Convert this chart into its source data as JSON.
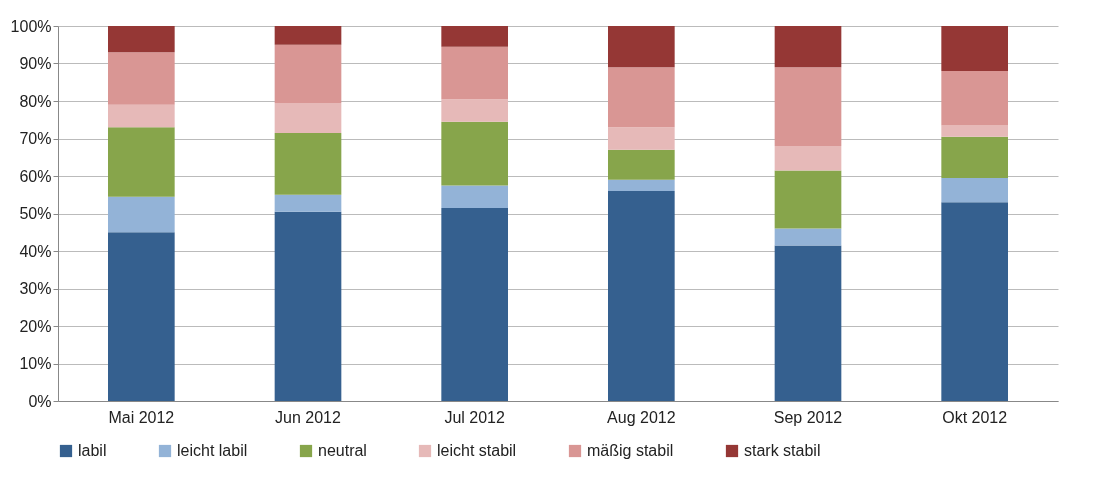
{
  "chart_data": {
    "type": "bar",
    "stacked": true,
    "categories": [
      "Mai 2012",
      "Jun 2012",
      "Jul 2012",
      "Aug 2012",
      "Sep 2012",
      "Okt 2012"
    ],
    "series": [
      {
        "name": "labil",
        "color": "#35608f",
        "values": [
          45,
          50.5,
          51.5,
          56,
          41.5,
          53
        ]
      },
      {
        "name": "leicht labil",
        "color": "#93b3d7",
        "values": [
          9.5,
          4.5,
          6,
          3,
          4.5,
          6.5
        ]
      },
      {
        "name": "neutral",
        "color": "#87a54b",
        "values": [
          18.5,
          16.5,
          17,
          8,
          15.5,
          11
        ]
      },
      {
        "name": "leicht stabil",
        "color": "#e6b9b8",
        "values": [
          6,
          8,
          6,
          6,
          6.5,
          3
        ]
      },
      {
        "name": "mäßig stabil",
        "color": "#d99694",
        "values": [
          14,
          15.5,
          14,
          16,
          21,
          14.5
        ]
      },
      {
        "name": "stark stabil",
        "color": "#953735",
        "values": [
          7,
          5,
          5.5,
          11,
          11,
          12
        ]
      }
    ],
    "ylim": [
      0,
      100
    ],
    "yticks": [
      {
        "value": 0,
        "label": "0%"
      },
      {
        "value": 10,
        "label": "10%"
      },
      {
        "value": 20,
        "label": "20%"
      },
      {
        "value": 30,
        "label": "30%"
      },
      {
        "value": 40,
        "label": "40%"
      },
      {
        "value": 50,
        "label": "50%"
      },
      {
        "value": 60,
        "label": "60%"
      },
      {
        "value": 70,
        "label": "70%"
      },
      {
        "value": 80,
        "label": "80%"
      },
      {
        "value": 90,
        "label": "90%"
      },
      {
        "value": 100,
        "label": "100%"
      }
    ],
    "grid": "y",
    "legend": "bottom"
  }
}
